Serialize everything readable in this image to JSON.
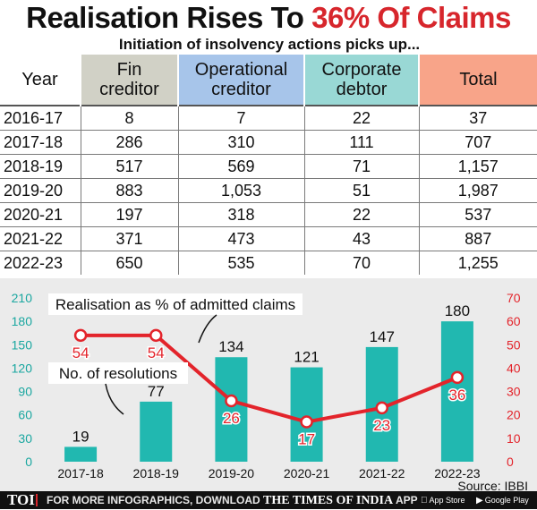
{
  "title": {
    "part1": "Realisation Rises To ",
    "part2": "36% Of Claims"
  },
  "subtitle": "Initiation of insolvency actions picks up...",
  "table": {
    "headers": [
      {
        "line1": "Year",
        "line2": ""
      },
      {
        "line1": "Fin",
        "line2": "creditor"
      },
      {
        "line1": "Operational",
        "line2": "creditor"
      },
      {
        "line1": "Corporate",
        "line2": "debtor"
      },
      {
        "line1": "Total",
        "line2": ""
      }
    ],
    "rows": [
      [
        "2016-17",
        "8",
        "7",
        "22",
        "37"
      ],
      [
        "2017-18",
        "286",
        "310",
        "111",
        "707"
      ],
      [
        "2018-19",
        "517",
        "569",
        "71",
        "1,157"
      ],
      [
        "2019-20",
        "883",
        "1,053",
        "51",
        "1,987"
      ],
      [
        "2020-21",
        "197",
        "318",
        "22",
        "537"
      ],
      [
        "2021-22",
        "371",
        "473",
        "43",
        "887"
      ],
      [
        "2022-23",
        "650",
        "535",
        "70",
        "1,255"
      ]
    ]
  },
  "chart_data": {
    "type": "bar",
    "title": "",
    "categories": [
      "2017-18",
      "2018-19",
      "2019-20",
      "2020-21",
      "2021-22",
      "2022-23"
    ],
    "series": [
      {
        "name": "No. of resolutions",
        "type": "bar",
        "axis": "left",
        "values": [
          19,
          77,
          134,
          121,
          147,
          180
        ]
      },
      {
        "name": "Realisation as % of admitted claims",
        "type": "line",
        "axis": "right",
        "values": [
          54,
          54,
          26,
          17,
          23,
          36
        ]
      }
    ],
    "left_axis": {
      "min": 0,
      "max": 210,
      "ticks": [
        0,
        30,
        60,
        90,
        120,
        150,
        180,
        210
      ]
    },
    "right_axis": {
      "min": 0,
      "max": 70,
      "ticks": [
        0,
        10,
        20,
        30,
        40,
        50,
        60,
        70
      ]
    },
    "annotations": {
      "line_label": "Realisation as % of admitted claims",
      "bar_label": "No. of resolutions"
    },
    "colors": {
      "bar": "#21b8b0",
      "line": "#e3242b",
      "left_axis": "#1aa7a0",
      "right_axis": "#e3242b"
    }
  },
  "source": "Source: IBBI",
  "footer": {
    "logo": "TOI",
    "promo_text": "FOR MORE INFOGRAPHICS, DOWNLOAD",
    "promo_brand": "THE TIMES OF INDIA",
    "promo_suffix": "APP",
    "app_store": "App Store",
    "google_play": "Google Play"
  }
}
